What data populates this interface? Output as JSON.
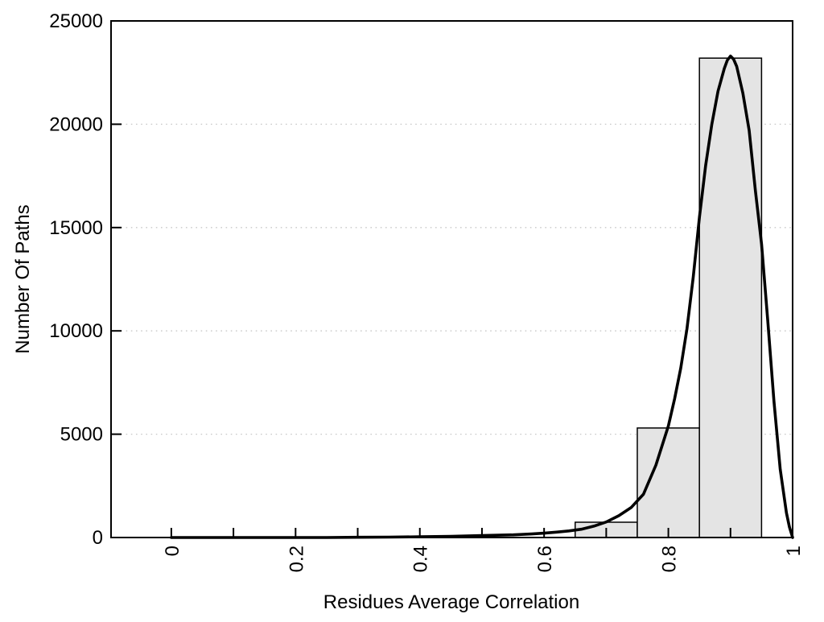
{
  "chart_data": {
    "type": "bar",
    "subtype": "histogram-with-density-curve",
    "title": "",
    "xlabel": "Residues Average Correlation",
    "ylabel": "Number Of Paths",
    "xlim": [
      -0.097,
      1.0
    ],
    "ylim": [
      0,
      25000
    ],
    "grid": "horizontal dotted lines at y major ticks",
    "legend": "none",
    "yticks": [
      {
        "v": 0,
        "label": "0"
      },
      {
        "v": 5000,
        "label": "5000"
      },
      {
        "v": 10000,
        "label": "10000"
      },
      {
        "v": 15000,
        "label": "15000"
      },
      {
        "v": 20000,
        "label": "20000"
      },
      {
        "v": 25000,
        "label": "25000"
      }
    ],
    "xticks": [
      {
        "v": 0.0,
        "label": "0"
      },
      {
        "v": 0.1,
        "label": ""
      },
      {
        "v": 0.2,
        "label": "0.2"
      },
      {
        "v": 0.3,
        "label": ""
      },
      {
        "v": 0.4,
        "label": "0.4"
      },
      {
        "v": 0.5,
        "label": ""
      },
      {
        "v": 0.6,
        "label": "0.6"
      },
      {
        "v": 0.7,
        "label": ""
      },
      {
        "v": 0.8,
        "label": "0.8"
      },
      {
        "v": 0.9,
        "label": ""
      },
      {
        "v": 1.0,
        "label": "1"
      }
    ],
    "bars": [
      {
        "x0": 0.65,
        "x1": 0.75,
        "count": 740
      },
      {
        "x0": 0.75,
        "x1": 0.85,
        "count": 5300
      },
      {
        "x0": 0.85,
        "x1": 0.95,
        "count": 23200
      }
    ],
    "density_curve": [
      [
        0.0,
        0
      ],
      [
        0.05,
        0
      ],
      [
        0.1,
        0
      ],
      [
        0.15,
        0
      ],
      [
        0.2,
        0
      ],
      [
        0.25,
        0
      ],
      [
        0.3,
        10
      ],
      [
        0.35,
        20
      ],
      [
        0.4,
        35
      ],
      [
        0.45,
        60
      ],
      [
        0.5,
        95
      ],
      [
        0.55,
        130
      ],
      [
        0.58,
        170
      ],
      [
        0.6,
        210
      ],
      [
        0.62,
        260
      ],
      [
        0.64,
        320
      ],
      [
        0.66,
        400
      ],
      [
        0.68,
        550
      ],
      [
        0.7,
        750
      ],
      [
        0.72,
        1050
      ],
      [
        0.74,
        1450
      ],
      [
        0.76,
        2100
      ],
      [
        0.78,
        3500
      ],
      [
        0.8,
        5400
      ],
      [
        0.81,
        6700
      ],
      [
        0.82,
        8200
      ],
      [
        0.83,
        10100
      ],
      [
        0.84,
        12600
      ],
      [
        0.85,
        15500
      ],
      [
        0.86,
        18000
      ],
      [
        0.87,
        20000
      ],
      [
        0.88,
        21600
      ],
      [
        0.89,
        22700
      ],
      [
        0.895,
        23100
      ],
      [
        0.9,
        23300
      ],
      [
        0.905,
        23150
      ],
      [
        0.91,
        22800
      ],
      [
        0.92,
        21500
      ],
      [
        0.93,
        19700
      ],
      [
        0.94,
        16800
      ],
      [
        0.95,
        14200
      ],
      [
        0.96,
        10500
      ],
      [
        0.97,
        6600
      ],
      [
        0.98,
        3300
      ],
      [
        0.99,
        1200
      ],
      [
        0.995,
        500
      ],
      [
        1.0,
        0
      ]
    ],
    "colors": {
      "bar_fill": "#e4e4e4",
      "bar_border": "#000000",
      "curve": "#000000",
      "axis": "#000000",
      "grid": "#c8c8c8",
      "text": "#000000",
      "background": "#ffffff"
    }
  }
}
